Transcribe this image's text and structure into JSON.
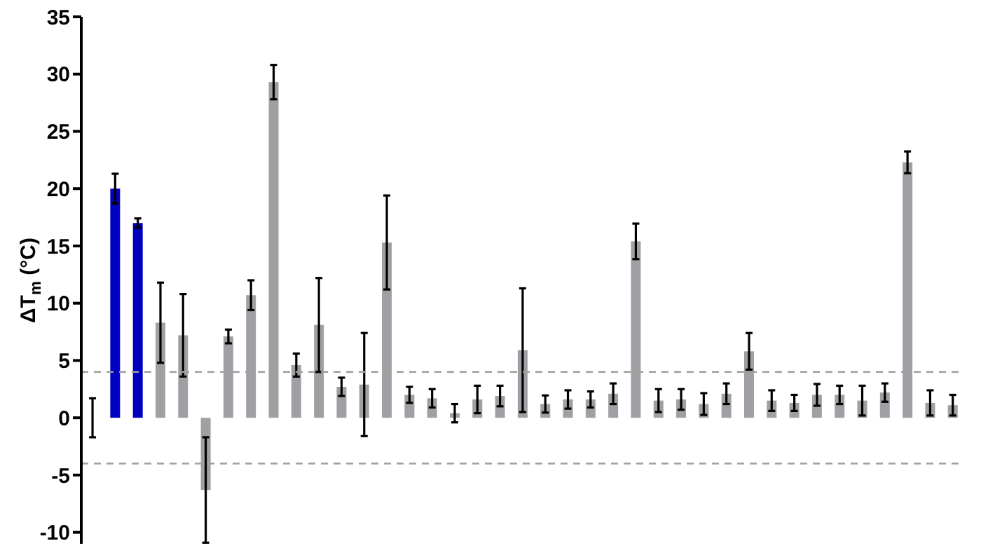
{
  "chart_data": {
    "type": "bar",
    "ylabel": "ΔT$_{m}$ (°C)",
    "categories": [
      null,
      null,
      null,
      null,
      null,
      null,
      null,
      null,
      null,
      null,
      null,
      null,
      null,
      null,
      null,
      null,
      null,
      null,
      null,
      null,
      null,
      null,
      null,
      null,
      null,
      null,
      null,
      null,
      null,
      null,
      null,
      null,
      null,
      null,
      null,
      null,
      null,
      null,
      null
    ],
    "values": [
      0,
      20,
      17,
      8.3,
      7.2,
      -6.3,
      7.1,
      10.7,
      29.3,
      4.6,
      8.1,
      2.7,
      2.9,
      15.3,
      2.0,
      1.7,
      0.4,
      1.6,
      1.9,
      5.9,
      1.2,
      1.6,
      1.6,
      2.1,
      15.4,
      1.5,
      1.6,
      1.2,
      2.1,
      5.8,
      1.5,
      1.3,
      2.0,
      2.0,
      1.5,
      2.2,
      22.3,
      1.3,
      1.1
    ],
    "errors": [
      1.7,
      1.3,
      0.4,
      3.5,
      3.6,
      4.6,
      0.6,
      1.3,
      1.5,
      1.0,
      4.1,
      0.8,
      4.5,
      4.1,
      0.7,
      0.8,
      0.8,
      1.2,
      0.9,
      5.4,
      0.75,
      0.8,
      0.7,
      0.9,
      1.55,
      1.0,
      0.9,
      0.95,
      0.9,
      1.6,
      0.9,
      0.7,
      0.95,
      0.8,
      1.3,
      0.8,
      0.95,
      1.1,
      0.9
    ],
    "colors": [
      "#a0a0a4",
      "#0000c0",
      "#0000c0",
      "#a0a0a4",
      "#a0a0a4",
      "#a0a0a4",
      "#a0a0a4",
      "#a0a0a4",
      "#a0a0a4",
      "#a0a0a4",
      "#a0a0a4",
      "#a0a0a4",
      "#a0a0a4",
      "#a0a0a4",
      "#a0a0a4",
      "#a0a0a4",
      "#a0a0a4",
      "#a0a0a4",
      "#a0a0a4",
      "#a0a0a4",
      "#a0a0a4",
      "#a0a0a4",
      "#a0a0a4",
      "#a0a0a4",
      "#a0a0a4",
      "#a0a0a4",
      "#a0a0a4",
      "#a0a0a4",
      "#a0a0a4",
      "#a0a0a4",
      "#a0a0a4",
      "#a0a0a4",
      "#a0a0a4",
      "#a0a0a4",
      "#a0a0a4",
      "#a0a0a4",
      "#a0a0a4",
      "#a0a0a4",
      "#a0a0a4"
    ],
    "ylim": [
      -11,
      35
    ],
    "yticks": [
      -10,
      -5,
      0,
      5,
      10,
      15,
      20,
      25,
      30,
      35
    ],
    "ref_lines": [
      {
        "axis": "y",
        "value": 4,
        "label": null,
        "color": "#a0a0a0",
        "line_style": "dashed"
      },
      {
        "axis": "y",
        "value": -4,
        "label": null,
        "color": "#a0a0a0",
        "line_style": "dashed"
      }
    ],
    "grid": false,
    "legend": false,
    "tick_labels": "y"
  }
}
